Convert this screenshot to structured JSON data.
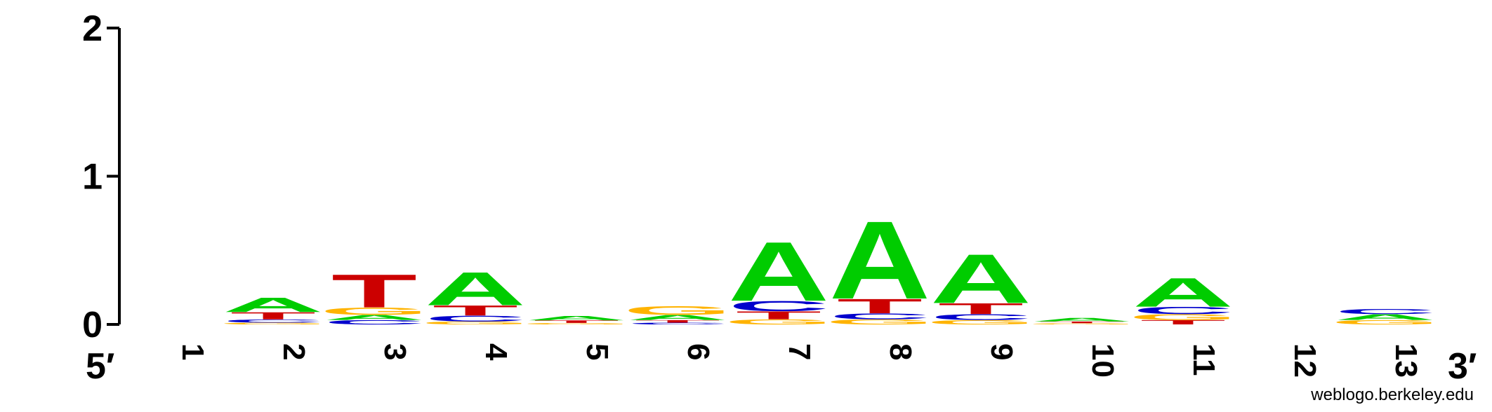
{
  "chart_data": {
    "type": "sequence-logo",
    "ylim": [
      0,
      2
    ],
    "y_ticks": [
      0,
      1,
      2
    ],
    "tick_labels": [
      "0",
      "1",
      "2"
    ],
    "end_labels": {
      "left": "5′",
      "right": "3′"
    },
    "colors": {
      "A": "#00cc00",
      "C": "#0000cc",
      "G": "#ffb300",
      "T": "#cc0000"
    },
    "positions": [
      {
        "label": "1",
        "stack": []
      },
      {
        "label": "2",
        "stack": [
          {
            "base": "G",
            "h": 0.012
          },
          {
            "base": "C",
            "h": 0.022
          },
          {
            "base": "T",
            "h": 0.05
          },
          {
            "base": "A",
            "h": 0.1
          }
        ]
      },
      {
        "label": "3",
        "stack": [
          {
            "base": "C",
            "h": 0.03
          },
          {
            "base": "A",
            "h": 0.035
          },
          {
            "base": "G",
            "h": 0.05
          },
          {
            "base": "T",
            "h": 0.23
          }
        ]
      },
      {
        "label": "4",
        "stack": [
          {
            "base": "G",
            "h": 0.02
          },
          {
            "base": "C",
            "h": 0.04
          },
          {
            "base": "T",
            "h": 0.07
          },
          {
            "base": "A",
            "h": 0.23
          }
        ]
      },
      {
        "label": "5",
        "stack": [
          {
            "base": "G",
            "h": 0.01
          },
          {
            "base": "T",
            "h": 0.018
          },
          {
            "base": "A",
            "h": 0.03
          }
        ]
      },
      {
        "label": "6",
        "stack": [
          {
            "base": "C",
            "h": 0.012
          },
          {
            "base": "T",
            "h": 0.018
          },
          {
            "base": "A",
            "h": 0.035
          },
          {
            "base": "G",
            "h": 0.06
          }
        ]
      },
      {
        "label": "7",
        "stack": [
          {
            "base": "G",
            "h": 0.035
          },
          {
            "base": "T",
            "h": 0.055
          },
          {
            "base": "C",
            "h": 0.07
          },
          {
            "base": "A",
            "h": 0.41
          }
        ]
      },
      {
        "label": "8",
        "stack": [
          {
            "base": "G",
            "h": 0.035
          },
          {
            "base": "C",
            "h": 0.04
          },
          {
            "base": "T",
            "h": 0.1
          },
          {
            "base": "A",
            "h": 0.54
          }
        ]
      },
      {
        "label": "9",
        "stack": [
          {
            "base": "G",
            "h": 0.03
          },
          {
            "base": "C",
            "h": 0.04
          },
          {
            "base": "T",
            "h": 0.075
          },
          {
            "base": "A",
            "h": 0.34
          }
        ]
      },
      {
        "label": "10",
        "stack": [
          {
            "base": "G",
            "h": 0.008
          },
          {
            "base": "T",
            "h": 0.012
          },
          {
            "base": "A",
            "h": 0.025
          }
        ]
      },
      {
        "label": "11",
        "stack": [
          {
            "base": "T",
            "h": 0.03
          },
          {
            "base": "G",
            "h": 0.04
          },
          {
            "base": "C",
            "h": 0.05
          },
          {
            "base": "A",
            "h": 0.2
          }
        ]
      },
      {
        "label": "12",
        "stack": []
      },
      {
        "label": "13",
        "stack": [
          {
            "base": "G",
            "h": 0.03
          },
          {
            "base": "A",
            "h": 0.04
          },
          {
            "base": "C",
            "h": 0.035
          }
        ]
      }
    ]
  },
  "footer": "weblogo.berkeley.edu"
}
